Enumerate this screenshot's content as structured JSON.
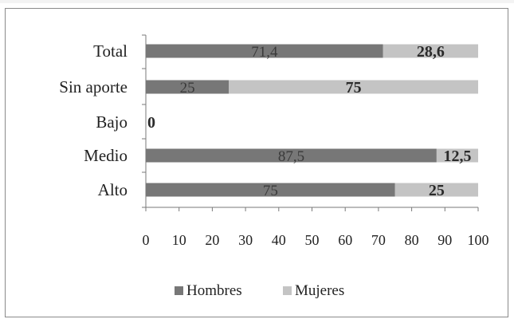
{
  "chart_data": {
    "type": "bar",
    "orientation": "horizontal",
    "stacked": true,
    "categories": [
      "Total",
      "Sin aporte",
      "Bajo",
      "Medio",
      "Alto"
    ],
    "series": [
      {
        "name": "Hombres",
        "values": [
          71.4,
          25,
          0,
          87.5,
          75
        ],
        "labels": [
          "71,4",
          "25",
          "0",
          "87,5",
          "75"
        ],
        "color": "#777777"
      },
      {
        "name": "Mujeres",
        "values": [
          28.6,
          75,
          0,
          12.5,
          25
        ],
        "labels": [
          "28,6",
          "75",
          "",
          "12,5",
          "25"
        ],
        "color": "#c4c4c4"
      }
    ],
    "xlim": [
      0,
      100
    ],
    "xticks": [
      "0",
      "10",
      "20",
      "30",
      "40",
      "50",
      "60",
      "70",
      "80",
      "90",
      "100"
    ],
    "grid": false,
    "legend": "bottom"
  }
}
